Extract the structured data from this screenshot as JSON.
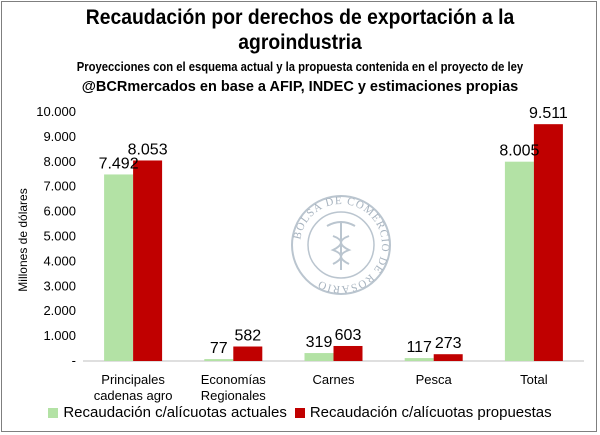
{
  "chart_data": {
    "type": "bar",
    "title": "Recaudación por derechos de exportación a la agroindustria",
    "subtitle": "Proyecciones con el esquema actual y la propuesta contenida en el proyecto de ley",
    "source": "@BCRmercados en base a AFIP,  INDEC y estimaciones propias",
    "ylabel": "Millones de dólares",
    "xlabel": "",
    "ylim": [
      0,
      10000
    ],
    "yticks": [
      0,
      1000,
      2000,
      3000,
      4000,
      5000,
      6000,
      7000,
      8000,
      9000,
      10000
    ],
    "ytick_labels": [
      "-",
      "1.000",
      "2.000",
      "3.000",
      "4.000",
      "5.000",
      "6.000",
      "7.000",
      "8.000",
      "9.000",
      "10.000"
    ],
    "grid": false,
    "legend_position": "bottom",
    "categories": [
      [
        "Principales",
        "cadenas agro"
      ],
      [
        "Economías",
        "Regionales"
      ],
      [
        "Carnes"
      ],
      [
        "Pesca"
      ],
      [
        "Total"
      ]
    ],
    "series": [
      {
        "name": "Recaudación c/alícuotas actuales",
        "color": "#b3e2a5",
        "values": [
          7492,
          77,
          319,
          117,
          8005
        ],
        "labels": [
          "7.492",
          "77",
          "319",
          "117",
          "8.005"
        ]
      },
      {
        "name": "Recaudación c/alícuotas propuestas",
        "color": "#c00000",
        "values": [
          8053,
          582,
          603,
          273,
          9511
        ],
        "labels": [
          "8.053",
          "582",
          "603",
          "273",
          "9.511"
        ]
      }
    ]
  },
  "watermark": {
    "text": "BOLSA DE COMERCIO DE ROSARIO"
  }
}
